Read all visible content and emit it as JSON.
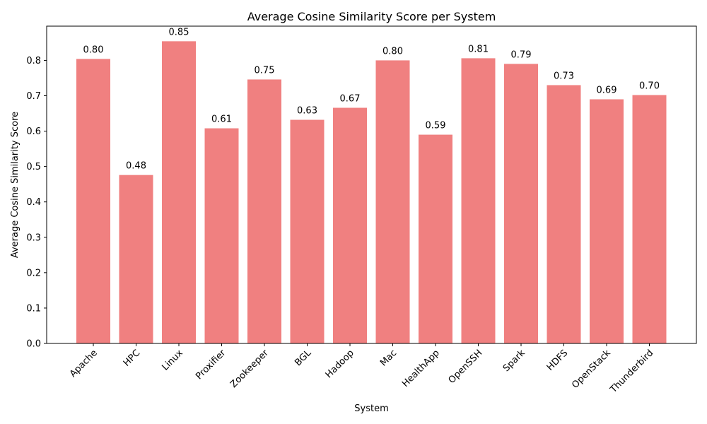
{
  "chart_data": {
    "type": "bar",
    "title": "Average Cosine Similarity Score per System",
    "xlabel": "System",
    "ylabel": "Average Cosine Similarity Score",
    "categories": [
      "Apache",
      "HPC",
      "Linux",
      "Proxifier",
      "Zookeeper",
      "BGL",
      "Hadoop",
      "Mac",
      "HealthApp",
      "OpenSSH",
      "Spark",
      "HDFS",
      "OpenStack",
      "Thunderbird"
    ],
    "values": [
      0.804,
      0.476,
      0.854,
      0.608,
      0.746,
      0.632,
      0.666,
      0.8,
      0.59,
      0.806,
      0.79,
      0.73,
      0.69,
      0.702
    ],
    "data_labels": [
      "0.80",
      "0.48",
      "0.85",
      "0.61",
      "0.75",
      "0.63",
      "0.67",
      "0.80",
      "0.59",
      "0.81",
      "0.79",
      "0.73",
      "0.69",
      "0.70"
    ],
    "yticks": [
      "0.0",
      "0.1",
      "0.2",
      "0.3",
      "0.4",
      "0.5",
      "0.6",
      "0.7",
      "0.8"
    ],
    "ylim": [
      0,
      0.8967
    ],
    "bar_color": "#f08080",
    "grid": false,
    "legend": "none"
  }
}
